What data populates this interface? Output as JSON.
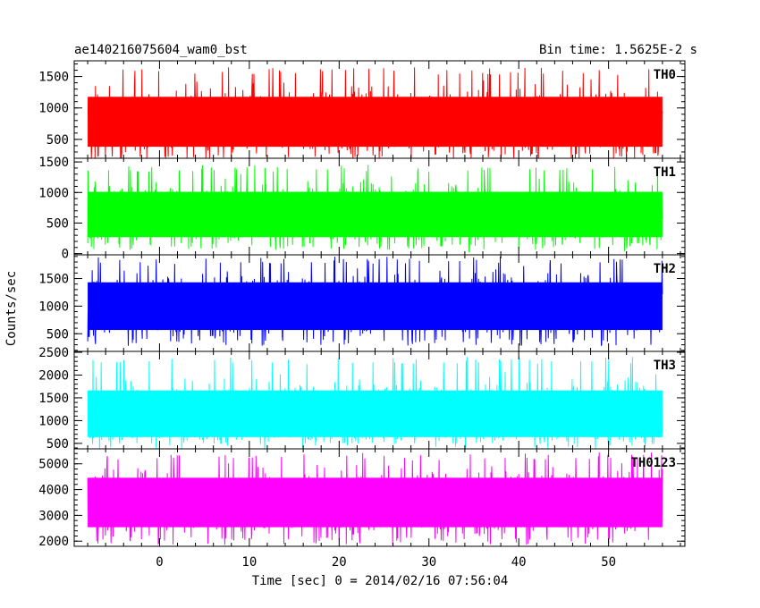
{
  "header": {
    "title": "ae140216075604_wam0_bst",
    "bin_time": "Bin time: 1.5625E-2 s"
  },
  "axes": {
    "ylabel": "Counts/sec",
    "xlabel": "Time [sec] 0 = 2014/02/16 07:56:04"
  },
  "chart_data": {
    "type": "line",
    "title": "ae140216075604_wam0_bst",
    "subtitle": "Bin time: 1.5625E-2 s",
    "xlabel": "Time [sec] 0 = 2014/02/16 07:56:04",
    "ylabel": "Counts/sec",
    "xlim": [
      -9.5,
      58.5
    ],
    "x_range_data": [
      -8,
      56
    ],
    "x_ticks": [
      0,
      10,
      20,
      30,
      40,
      50
    ],
    "grid": false,
    "panels": [
      {
        "name": "TH0",
        "color": "#ff0000",
        "ylim": [
          200,
          1750
        ],
        "yticks": [
          500,
          1000,
          1500
        ],
        "mean": 780,
        "low": 160,
        "high": 1650
      },
      {
        "name": "TH1",
        "color": "#00ff00",
        "ylim": [
          -20,
          1560
        ],
        "yticks": [
          0,
          500,
          1000,
          1500
        ],
        "mean": 640,
        "low": 60,
        "high": 1450
      },
      {
        "name": "TH2",
        "color": "#0000ff",
        "ylim": [
          180,
          1930
        ],
        "yticks": [
          500,
          1000,
          1500
        ],
        "mean": 1000,
        "low": 280,
        "high": 1900
      },
      {
        "name": "TH3",
        "color": "#00ffff",
        "ylim": [
          380,
          2520
        ],
        "yticks": [
          500,
          1000,
          1500,
          2000,
          2500
        ],
        "mean": 1150,
        "low": 480,
        "high": 2400
      },
      {
        "name": "TH0123",
        "color": "#ff00ff",
        "ylim": [
          1800,
          5580
        ],
        "yticks": [
          2000,
          3000,
          4000,
          5000
        ],
        "mean": 3500,
        "low": 1850,
        "high": 5450
      }
    ]
  }
}
